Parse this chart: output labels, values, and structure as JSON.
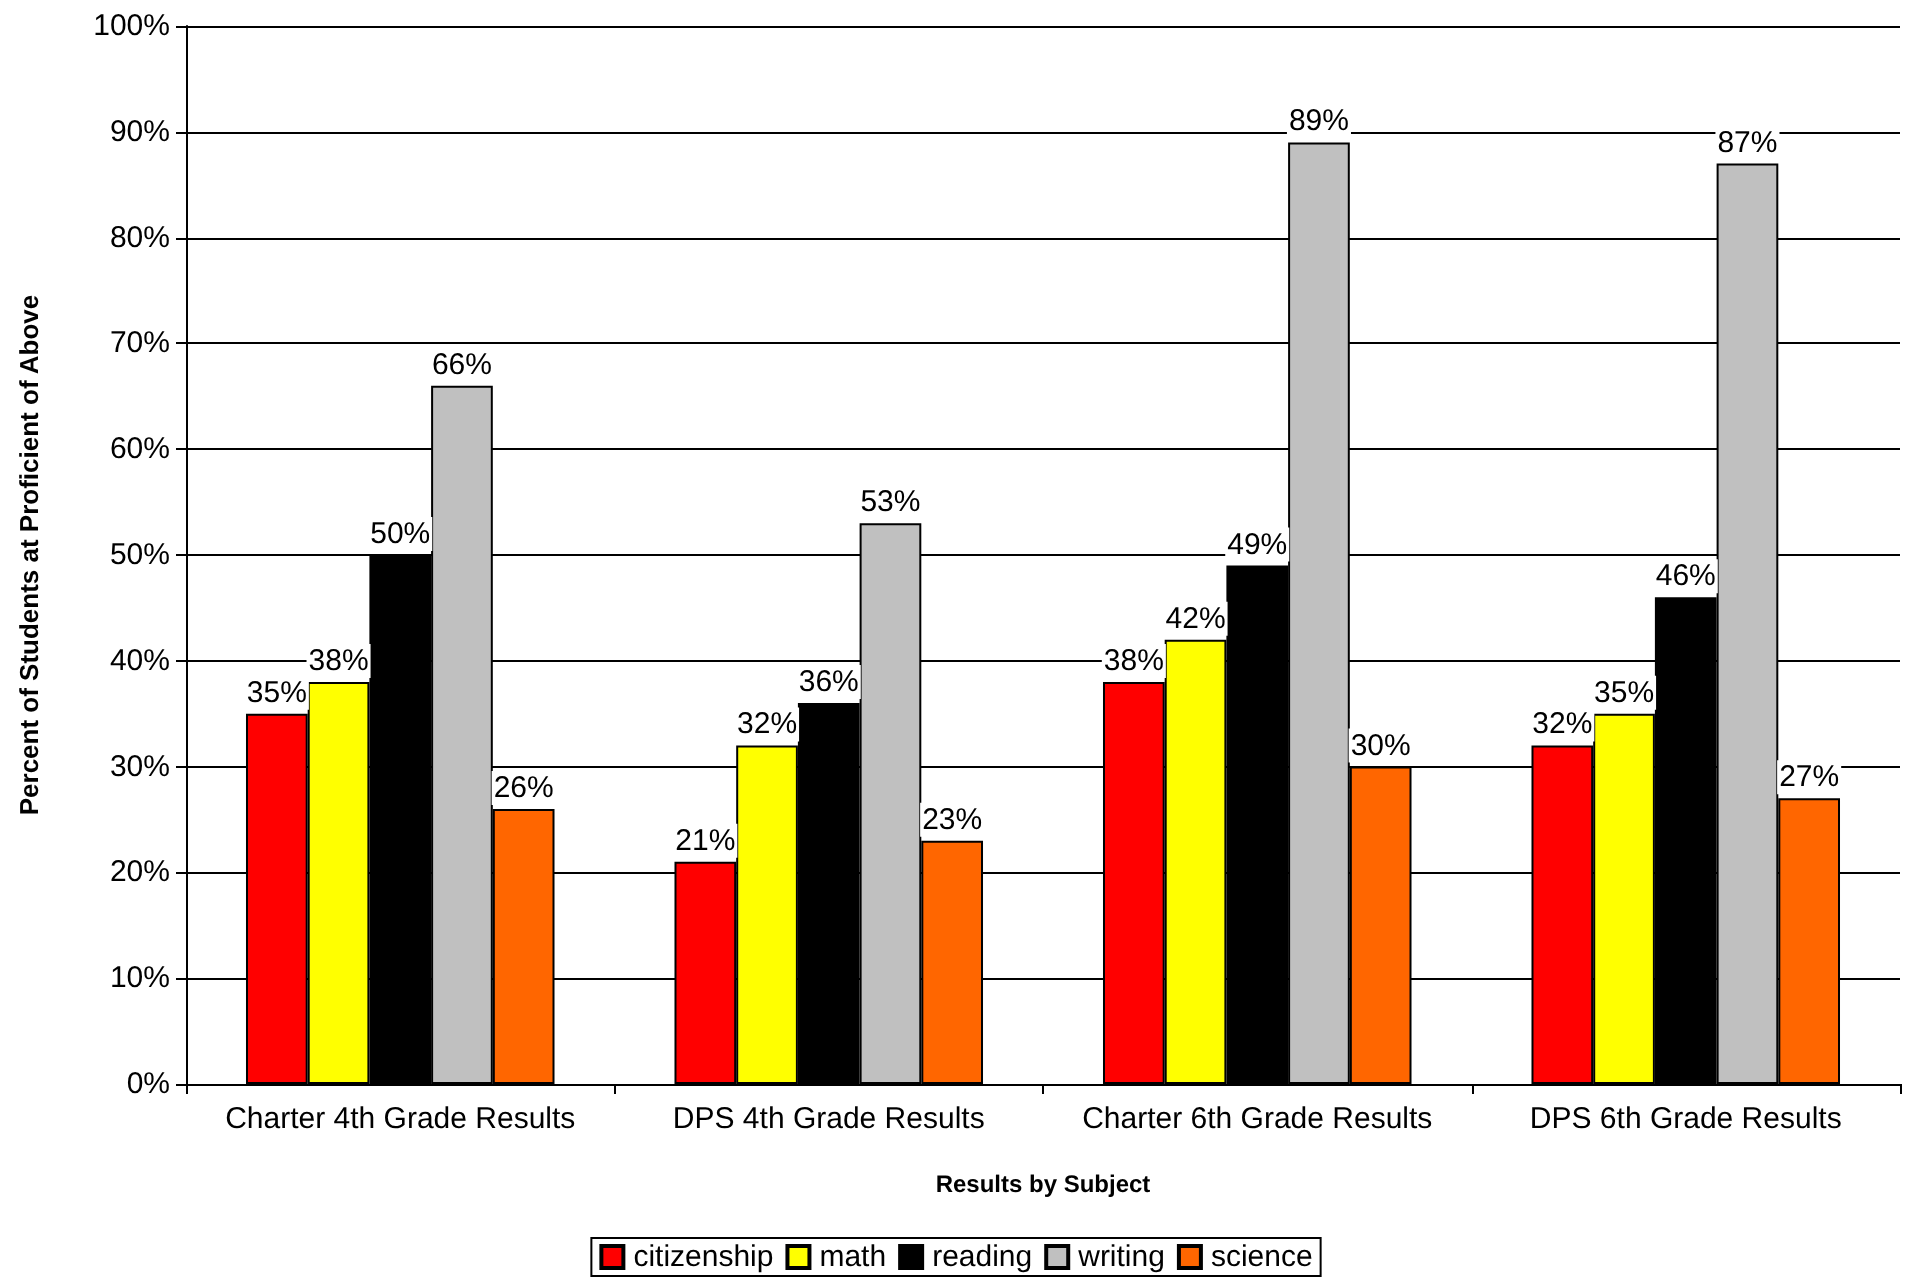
{
  "chart_data": {
    "type": "bar",
    "xlabel": "Results by Subject",
    "ylabel": "Percent of Students at Proficient of Above",
    "categories": [
      "Charter 4th Grade Results",
      "DPS 4th Grade Results",
      "Charter 6th Grade Results",
      "DPS 6th Grade Results"
    ],
    "series": [
      {
        "name": "citizenship",
        "color": "#ff0000",
        "values": [
          35,
          21,
          38,
          32
        ],
        "value_labels": [
          "35%",
          "21%",
          "38%",
          "32%"
        ]
      },
      {
        "name": "math",
        "color": "#ffff00",
        "values": [
          38,
          32,
          42,
          35
        ],
        "value_labels": [
          "38%",
          "32%",
          "42%",
          "35%"
        ]
      },
      {
        "name": "reading",
        "color": "#000000",
        "values": [
          50,
          36,
          49,
          46
        ],
        "value_labels": [
          "50%",
          "36%",
          "49%",
          "46%"
        ]
      },
      {
        "name": "writing",
        "color": "#c0c0c0",
        "values": [
          66,
          53,
          89,
          87
        ],
        "value_labels": [
          "66%",
          "53%",
          "89%",
          "87%"
        ]
      },
      {
        "name": "science",
        "color": "#ff6600",
        "values": [
          26,
          23,
          30,
          27
        ],
        "value_labels": [
          "26%",
          "23%",
          "30%",
          "27%"
        ]
      }
    ],
    "ylim": [
      0,
      100
    ],
    "yticks": [
      {
        "value": 0,
        "label": "0%"
      },
      {
        "value": 10,
        "label": "10%"
      },
      {
        "value": 20,
        "label": "20%"
      },
      {
        "value": 30,
        "label": "30%"
      },
      {
        "value": 40,
        "label": "40%"
      },
      {
        "value": 50,
        "label": "50%"
      },
      {
        "value": 60,
        "label": "60%"
      },
      {
        "value": 70,
        "label": "70%"
      },
      {
        "value": 80,
        "label": "80%"
      },
      {
        "value": 90,
        "label": "90%"
      },
      {
        "value": 100,
        "label": "100%"
      }
    ],
    "grid": "y",
    "legend": "bottom"
  }
}
